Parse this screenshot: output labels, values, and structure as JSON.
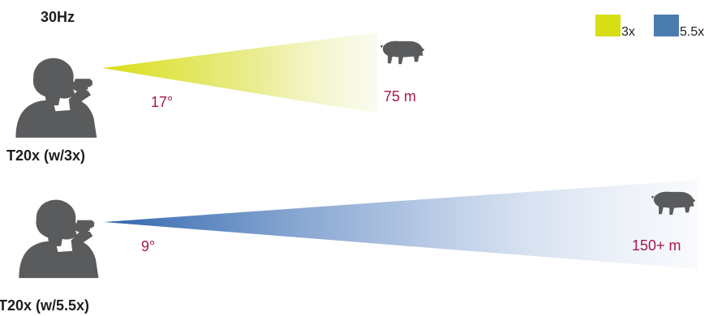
{
  "refresh_rate": "30Hz",
  "legend": [
    {
      "label": "3x",
      "color": "#d8de14"
    },
    {
      "label": "5.5x",
      "color": "#4a7cb0"
    }
  ],
  "configs": [
    {
      "model_label": "T20x (w/3x)",
      "angle_label": "17°",
      "distance_label": "75 m",
      "beam_color": "#d8de14"
    },
    {
      "model_label": "T20x (w/5.5x)",
      "angle_label": "9°",
      "distance_label": "150+ m",
      "beam_color": "#2e65ac"
    }
  ],
  "icons": {
    "person": "person-with-binoculars-icon",
    "target": "wild-boar-icon"
  }
}
